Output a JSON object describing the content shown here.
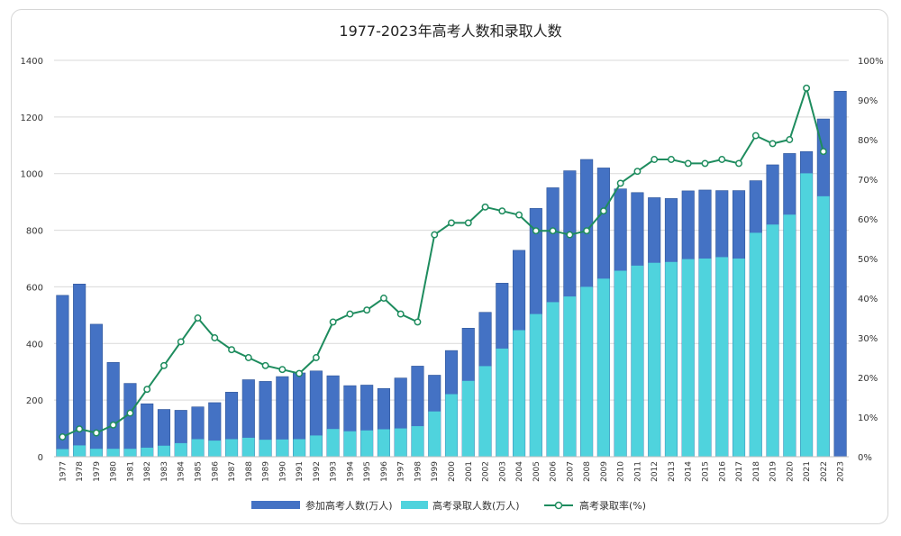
{
  "colors": {
    "applicants": "#4472C4",
    "admitted": "#4FD3DD",
    "rate": "#1E8C5E",
    "rate_marker": "#1E8C5E",
    "grid": "#D9D9D9",
    "axis_text": "#333333"
  },
  "chart_data": {
    "type": "bar",
    "title": "1977-2023年高考人数和录取人数",
    "categories": [
      "1977",
      "1978",
      "1979",
      "1980",
      "1981",
      "1982",
      "1983",
      "1984",
      "1985",
      "1986",
      "1987",
      "1988",
      "1989",
      "1990",
      "1991",
      "1992",
      "1993",
      "1994",
      "1995",
      "1996",
      "1997",
      "1998",
      "1999",
      "2000",
      "2001",
      "2002",
      "2003",
      "2004",
      "2005",
      "2006",
      "2007",
      "2008",
      "2009",
      "2010",
      "2011",
      "2012",
      "2013",
      "2014",
      "2015",
      "2016",
      "2017",
      "2018",
      "2019",
      "2020",
      "2021",
      "2022",
      "2023"
    ],
    "series": [
      {
        "name": "参加高考人数(万人)",
        "kind": "bar",
        "axis": "left",
        "values": [
          570,
          610,
          468,
          333,
          259,
          187,
          167,
          164,
          176,
          191,
          228,
          272,
          266,
          283,
          296,
          303,
          286,
          251,
          253,
          241,
          278,
          320,
          288,
          375,
          454,
          510,
          613,
          729,
          877,
          950,
          1010,
          1050,
          1020,
          946,
          933,
          915,
          912,
          939,
          942,
          940,
          940,
          975,
          1031,
          1071,
          1078,
          1193,
          1291
        ]
      },
      {
        "name": "高考录取人数(万人)",
        "kind": "bar",
        "axis": "left",
        "values": [
          27,
          40,
          28,
          28,
          28,
          32,
          39,
          48,
          62,
          57,
          62,
          67,
          60,
          61,
          62,
          75,
          98,
          90,
          93,
          97,
          100,
          108,
          160,
          221,
          268,
          320,
          382,
          447,
          504,
          546,
          566,
          600,
          629,
          657,
          675,
          685,
          688,
          698,
          700,
          705,
          700,
          791,
          820,
          855,
          1001,
          920,
          null
        ]
      },
      {
        "name": "高考录取率(%)",
        "kind": "line",
        "axis": "right",
        "values": [
          5,
          7,
          6,
          8,
          11,
          17,
          23,
          29,
          35,
          30,
          27,
          25,
          23,
          22,
          21,
          25,
          34,
          36,
          37,
          40,
          36,
          34,
          56,
          59,
          59,
          63,
          62,
          61,
          57,
          57,
          56,
          57,
          62,
          69,
          72,
          75,
          75,
          74,
          74,
          75,
          74,
          81,
          79,
          80,
          93,
          77,
          null
        ]
      }
    ],
    "ylim": [
      0,
      1400
    ],
    "yticks": [
      "0",
      "200",
      "400",
      "600",
      "800",
      "1000",
      "1200",
      "1400"
    ],
    "y2lim": [
      0,
      100
    ],
    "y2ticks": [
      "0%",
      "10%",
      "20%",
      "30%",
      "40%",
      "50%",
      "60%",
      "70%",
      "80%",
      "90%",
      "100%"
    ],
    "xlabel": "",
    "ylabel": "",
    "grid": true,
    "legend_position": "bottom"
  }
}
